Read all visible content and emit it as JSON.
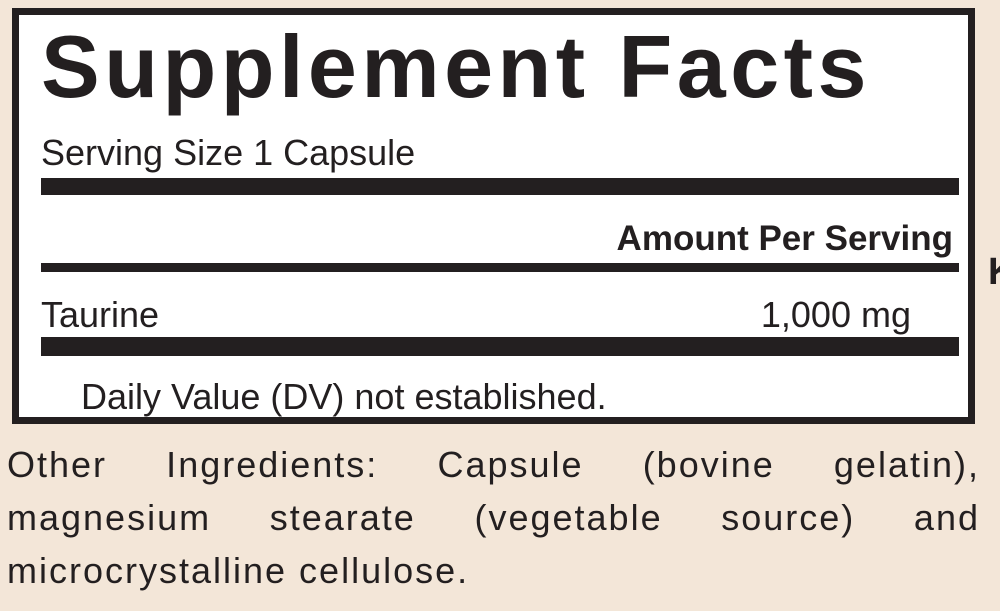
{
  "label": {
    "title": "Supplement Facts",
    "serving_size": "Serving Size 1 Capsule",
    "amount_header": "Amount Per Serving",
    "rows": [
      {
        "name": "Taurine",
        "amount": "1,000 mg"
      }
    ],
    "footnote": "Daily Value (DV) not established."
  },
  "other_ingredients": "Other Ingredients: Capsule (bovine gelatin), magnesium stearate (vegetable source) and microcrystalline cellulose.",
  "edge_text": "K",
  "colors": {
    "background": "#f3e6d8",
    "ink": "#231f20",
    "panel": "#ffffff"
  }
}
